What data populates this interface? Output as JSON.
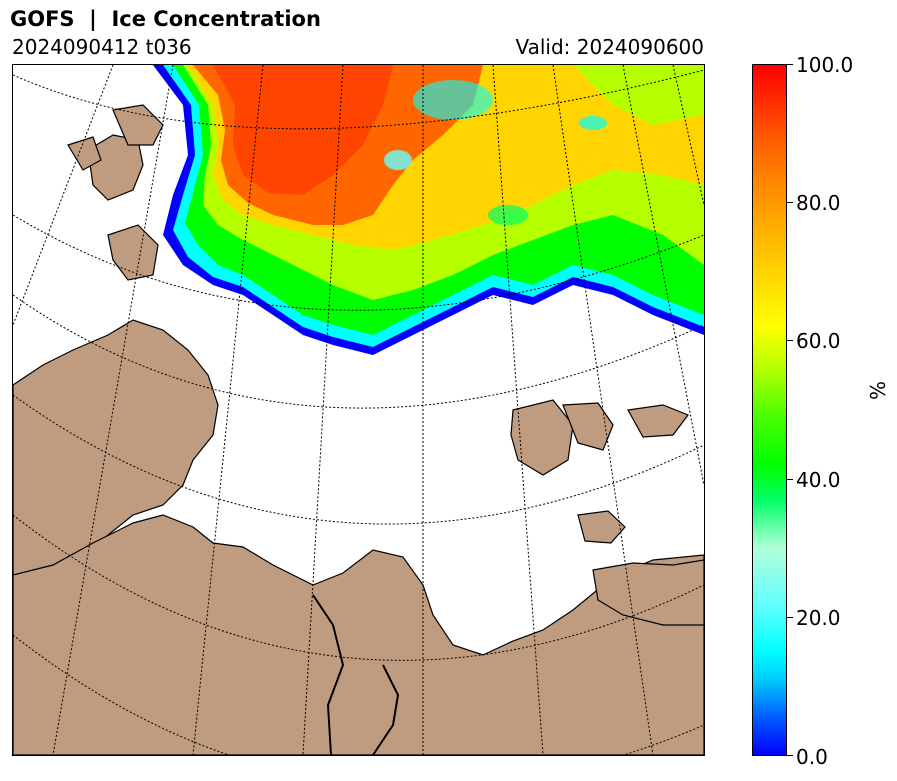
{
  "header": {
    "title": "GOFS  |  Ice Concentration",
    "run": "2024090412 t036",
    "valid": "Valid: 2024090600"
  },
  "colorbar": {
    "ticks": [
      "0.0",
      "20.0",
      "40.0",
      "60.0",
      "80.0",
      "100.0"
    ],
    "unit": "%",
    "colors": {
      "low": "#0000ff",
      "mid": "#00ff00",
      "high": "#ff0000"
    }
  },
  "map": {
    "land_color": "#bf9c7f",
    "ocean_color": "#ffffff",
    "coastline_color": "#000000",
    "graticule_style": "dotted"
  }
}
